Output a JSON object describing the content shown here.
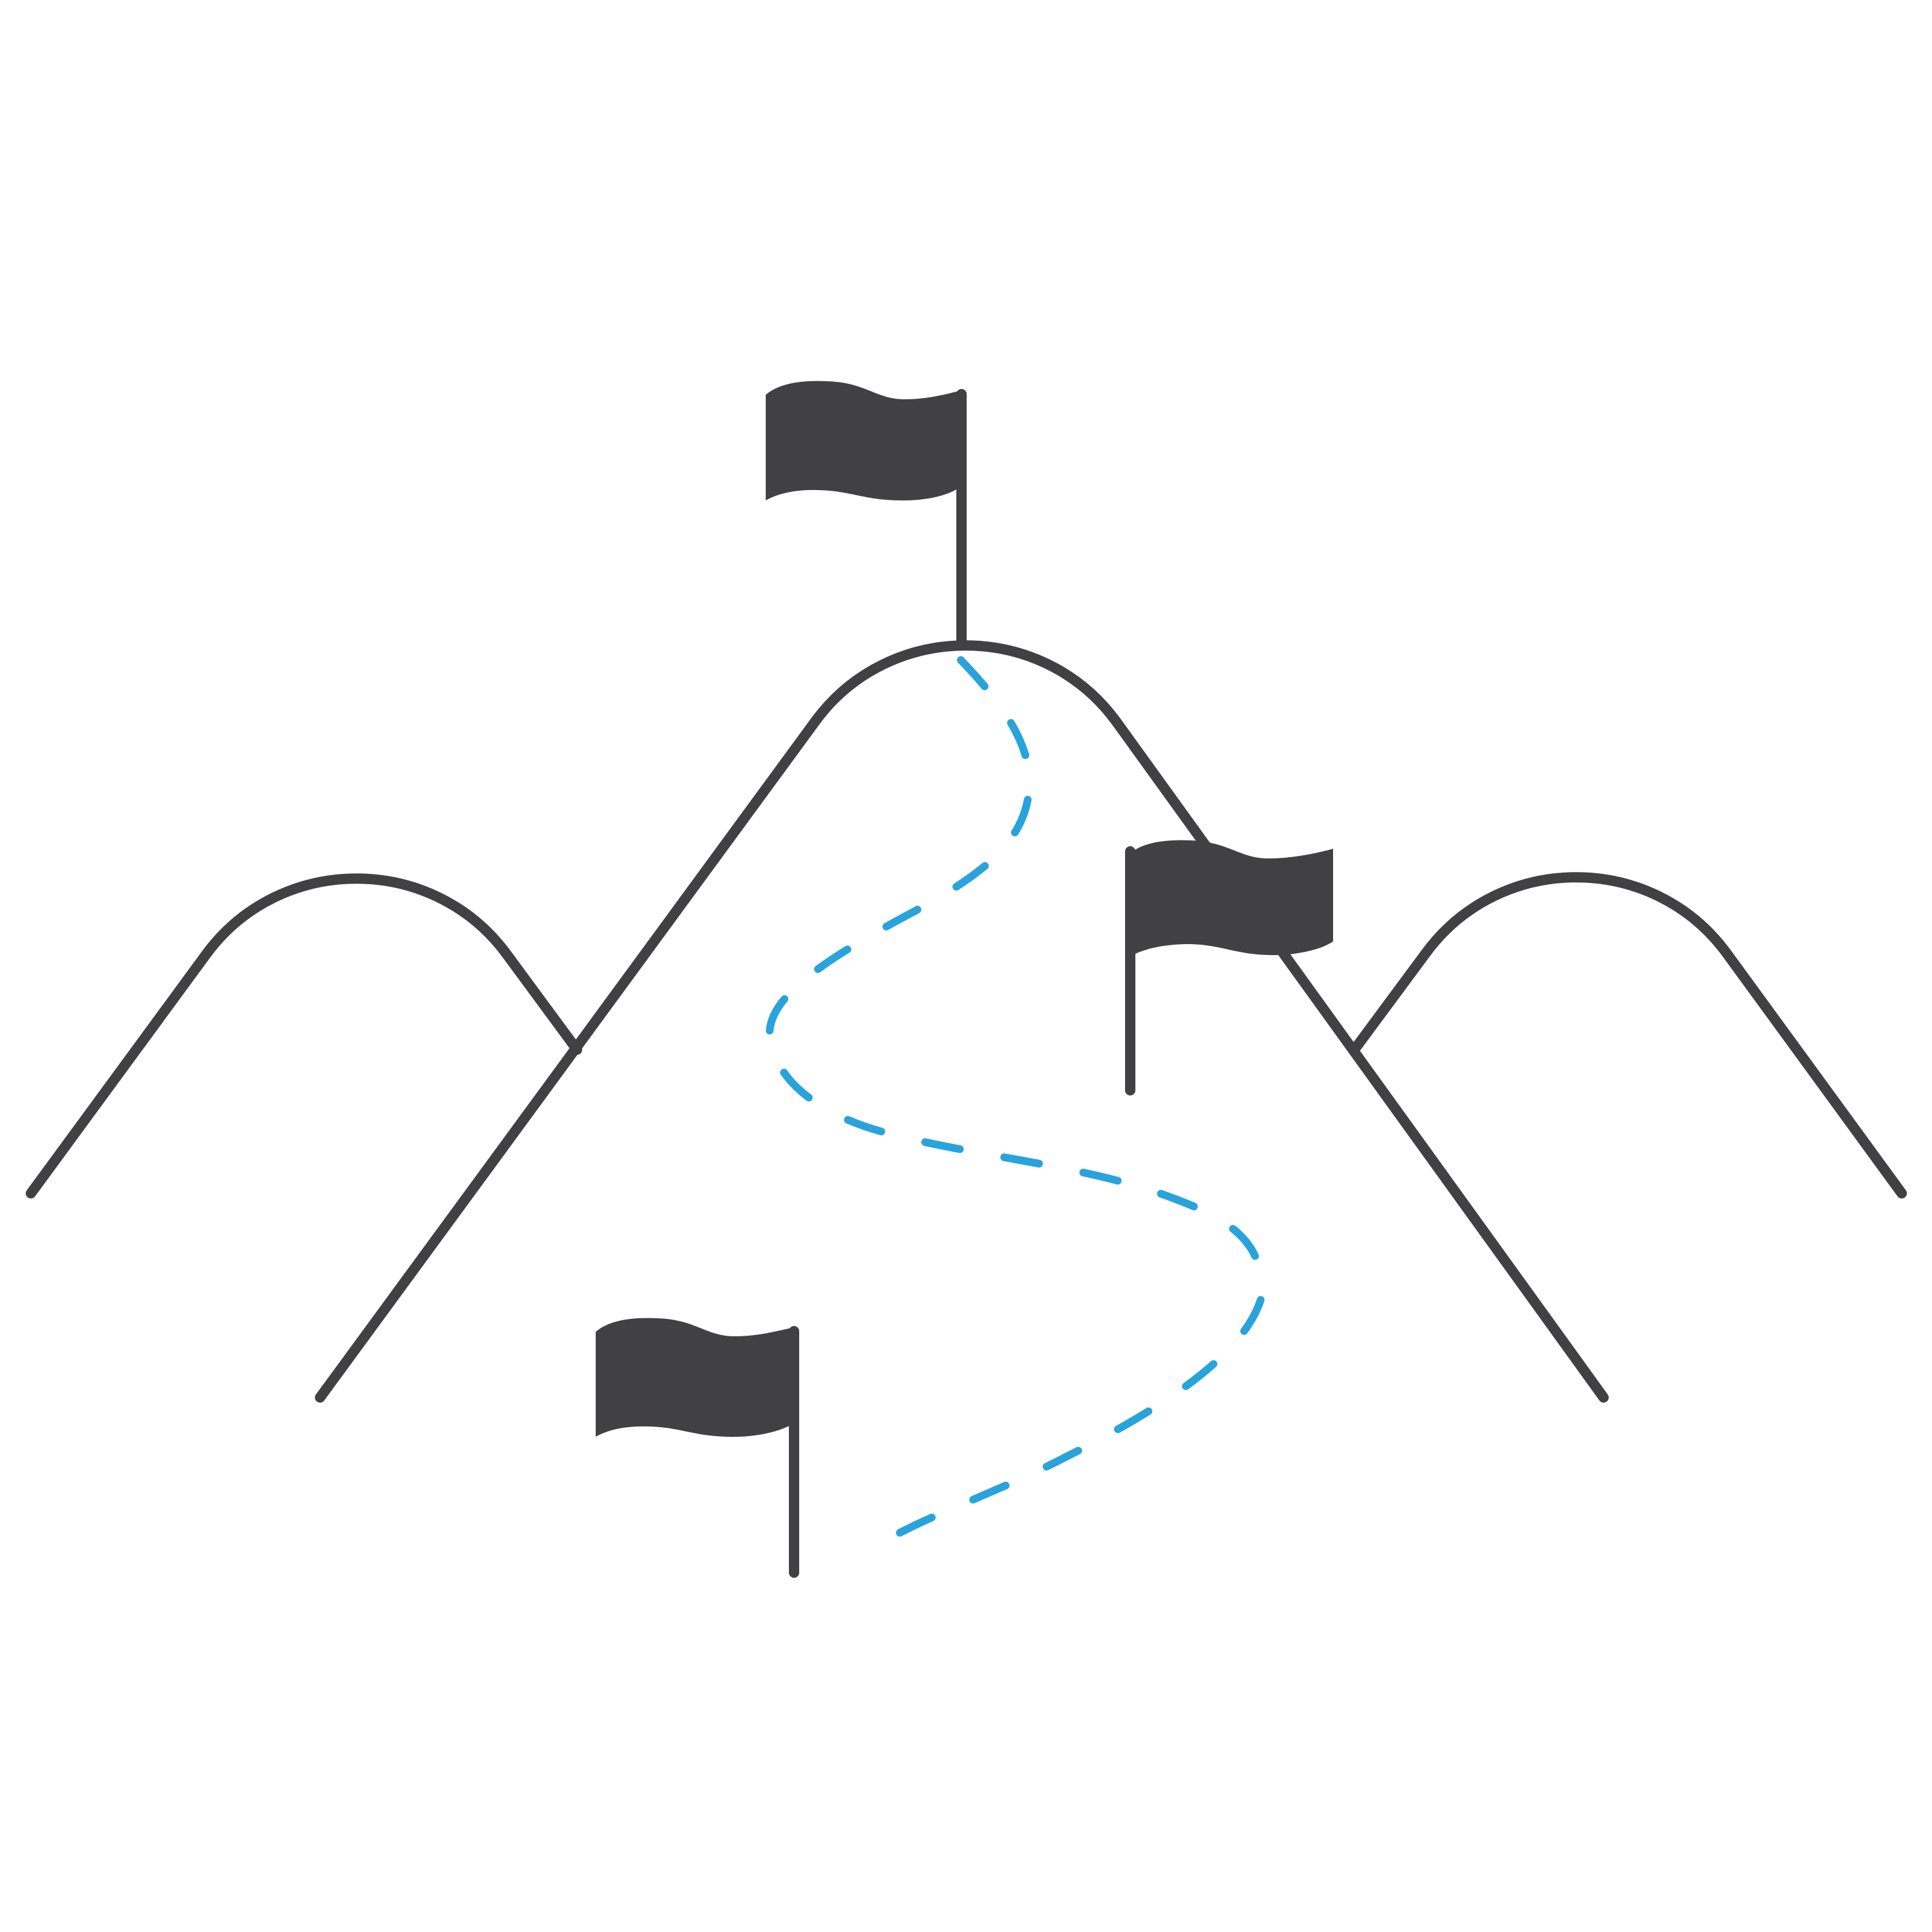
{
  "illustration": {
    "subject": "mountain-range-with-flags-and-path",
    "icons": [
      "mountain-icon",
      "flag-icon",
      "dashed-path-icon"
    ],
    "flag_count": 3
  },
  "colors": {
    "line": "#414143",
    "flag": "#414143",
    "path": "#29a3db",
    "background": "#ffffff"
  }
}
